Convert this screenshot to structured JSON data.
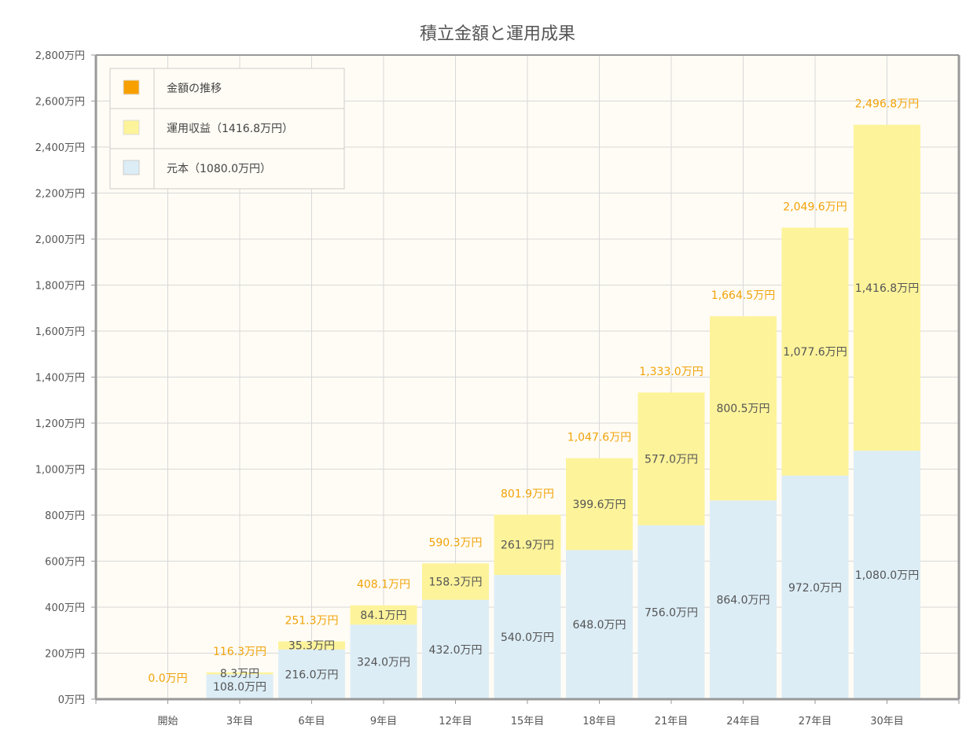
{
  "chart_data": {
    "type": "bar",
    "stacked": true,
    "title": "積立金額と運用成果",
    "categories": [
      "開始",
      "3年目",
      "6年目",
      "9年目",
      "12年目",
      "15年目",
      "18年目",
      "21年目",
      "24年目",
      "27年目",
      "30年目"
    ],
    "series": [
      {
        "name": "元本（1080.0万円）",
        "color": "#dcedf6",
        "values": [
          0,
          108.0,
          216.0,
          324.0,
          432.0,
          540.0,
          648.0,
          756.0,
          864.0,
          972.0,
          1080.0
        ],
        "labels": [
          "",
          "108.0万円",
          "216.0万円",
          "324.0万円",
          "432.0万円",
          "540.0万円",
          "648.0万円",
          "756.0万円",
          "864.0万円",
          "972.0万円",
          "1,080.0万円"
        ]
      },
      {
        "name": "運用収益（1416.8万円）",
        "color": "#fdf39a",
        "values": [
          0,
          8.3,
          35.3,
          84.1,
          158.3,
          261.9,
          399.6,
          577.0,
          800.5,
          1077.6,
          1416.8
        ],
        "labels": [
          "",
          "8.3万円",
          "35.3万円",
          "84.1万円",
          "158.3万円",
          "261.9万円",
          "399.6万円",
          "577.0万円",
          "800.5万円",
          "1,077.6万円",
          "1,416.8万円"
        ]
      }
    ],
    "totals": {
      "name": "金額の推移",
      "color": "#f7a000",
      "values": [
        0.0,
        116.3,
        251.3,
        408.1,
        590.3,
        801.9,
        1047.6,
        1333.0,
        1664.5,
        2049.6,
        2496.8
      ],
      "labels": [
        "0.0万円",
        "116.3万円",
        "251.3万円",
        "408.1万円",
        "590.3万円",
        "801.9万円",
        "1,047.6万円",
        "1,333.0万円",
        "1,664.5万円",
        "2,049.6万円",
        "2,496.8万円"
      ]
    },
    "ylim": [
      0,
      2800
    ],
    "yticks": [
      0,
      200,
      400,
      600,
      800,
      1000,
      1200,
      1400,
      1600,
      1800,
      2000,
      2200,
      2400,
      2600,
      2800
    ],
    "ytick_labels": [
      "0万円",
      "200万円",
      "400万円",
      "600万円",
      "800万円",
      "1,000万円",
      "1,200万円",
      "1,400万円",
      "1,600万円",
      "1,800万円",
      "2,000万円",
      "2,200万円",
      "2,400万円",
      "2,600万円",
      "2,800万円"
    ],
    "grid": true,
    "legend_position": "top-left",
    "background": "#fffcf5"
  }
}
